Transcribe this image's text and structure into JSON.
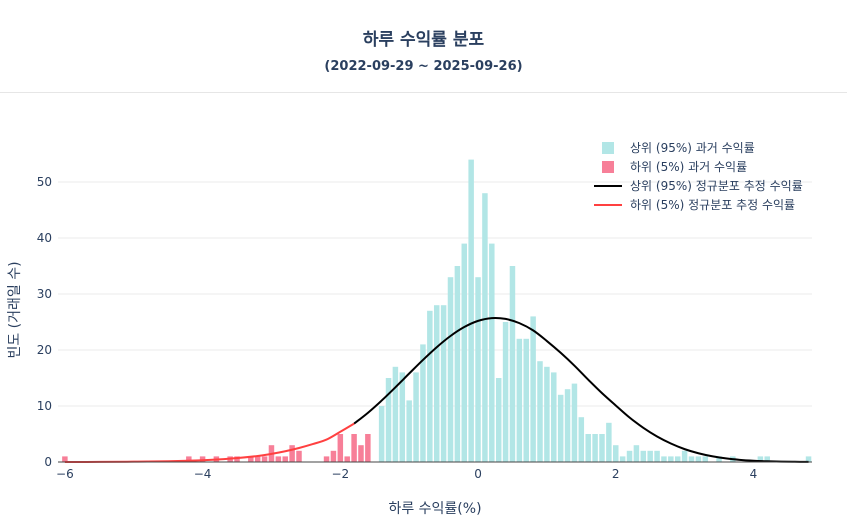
{
  "chart_data": {
    "type": "bar",
    "title": "하루 수익률 분포",
    "subtitle": "(2022-09-29 ~ 2025-09-26)",
    "xlabel": "하루 수익률(%)",
    "ylabel": "빈도 (거래일 수)",
    "xlim": [
      -6.1,
      4.85
    ],
    "ylim": [
      0,
      57.5
    ],
    "xticks": [
      -6,
      -4,
      -2,
      0,
      2,
      4
    ],
    "yticks": [
      0,
      10,
      20,
      30,
      40,
      50
    ],
    "grid": true,
    "legend_position": "top-right",
    "bin_width": 0.1,
    "series": [
      {
        "name": "상위 (95%) 과거 수익률",
        "type": "histogram",
        "color": "#b2e6e6",
        "x": [
          -1.4,
          -1.3,
          -1.2,
          -1.1,
          -1.0,
          -0.9,
          -0.8,
          -0.7,
          -0.6,
          -0.5,
          -0.4,
          -0.3,
          -0.2,
          -0.1,
          0.0,
          0.1,
          0.2,
          0.3,
          0.4,
          0.5,
          0.6,
          0.7,
          0.8,
          0.9,
          1.0,
          1.1,
          1.2,
          1.3,
          1.4,
          1.5,
          1.6,
          1.7,
          1.8,
          1.9,
          2.0,
          2.1,
          2.2,
          2.3,
          2.4,
          2.5,
          2.6,
          2.7,
          2.8,
          2.9,
          3.0,
          3.1,
          3.2,
          3.3,
          3.5,
          3.7,
          4.1,
          4.2,
          4.8
        ],
        "values": [
          10,
          15,
          17,
          16,
          11,
          16,
          21,
          27,
          28,
          28,
          33,
          35,
          39,
          54,
          33,
          48,
          39,
          15,
          25,
          35,
          22,
          22,
          26,
          18,
          17,
          16,
          12,
          13,
          14,
          8,
          5,
          5,
          5,
          7,
          3,
          1,
          2,
          3,
          2,
          2,
          2,
          1,
          1,
          1,
          2,
          1,
          1,
          1,
          1,
          1,
          1,
          1,
          1
        ]
      },
      {
        "name": "하위 (5%) 과거 수익률",
        "type": "histogram",
        "color": "#f77f98",
        "x": [
          -6.0,
          -4.2,
          -4.0,
          -3.8,
          -3.6,
          -3.5,
          -3.3,
          -3.2,
          -3.1,
          -3.0,
          -2.9,
          -2.8,
          -2.7,
          -2.6,
          -2.2,
          -2.1,
          -2.0,
          -1.9,
          -1.8,
          -1.7,
          -1.6
        ],
        "values": [
          1,
          1,
          1,
          1,
          1,
          1,
          1,
          1,
          1,
          3,
          1,
          1,
          3,
          2,
          1,
          2,
          5,
          1,
          5,
          3,
          5
        ]
      },
      {
        "name": "상위 (95%) 정규분포 추정 수익률",
        "type": "line",
        "color": "#000000",
        "x": [
          -1.8,
          -1.6,
          -1.4,
          -1.2,
          -1.0,
          -0.8,
          -0.6,
          -0.4,
          -0.2,
          0.0,
          0.2,
          0.4,
          0.6,
          0.8,
          1.0,
          1.2,
          1.4,
          1.6,
          1.8,
          2.0,
          2.2,
          2.4,
          2.6,
          2.8,
          3.0,
          3.2,
          3.4,
          3.6,
          3.8,
          4.0,
          4.2,
          4.4,
          4.6,
          4.8
        ],
        "values": [
          6.85,
          8.78,
          10.97,
          13.34,
          15.8,
          18.23,
          20.5,
          22.5,
          24.1,
          25.2,
          25.7,
          25.55,
          24.8,
          23.5,
          21.6,
          19.5,
          17.2,
          14.7,
          12.3,
          10.1,
          7.95,
          6.1,
          4.55,
          3.3,
          2.3,
          1.56,
          1.02,
          0.64,
          0.39,
          0.23,
          0.13,
          0.07,
          0.04,
          0.02
        ]
      },
      {
        "name": "하위 (5%) 정규분포 추정 수익률",
        "type": "line",
        "color": "#ff4040",
        "x": [
          -6.0,
          -5.5,
          -5.0,
          -4.5,
          -4.0,
          -3.6,
          -3.2,
          -3.0,
          -2.8,
          -2.6,
          -2.4,
          -2.2,
          -2.0,
          -1.8
        ],
        "values": [
          0.0,
          0.02,
          0.06,
          0.14,
          0.32,
          0.6,
          1.07,
          1.45,
          1.92,
          2.5,
          3.2,
          4.0,
          5.4,
          6.85
        ]
      }
    ]
  }
}
